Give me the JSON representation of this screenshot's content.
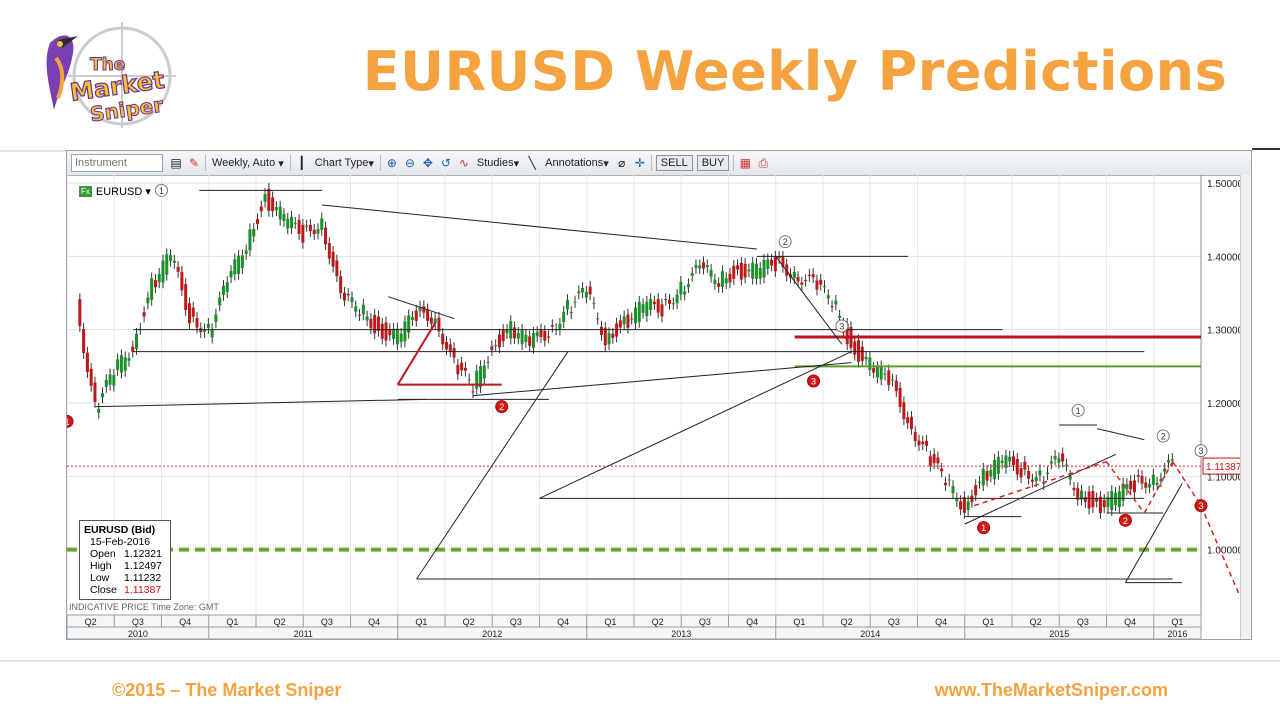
{
  "slide": {
    "title": "EURUSD Weekly Predictions",
    "logo_text": [
      "The",
      "Market",
      "Sniper"
    ],
    "footer_left": "©2015 – The Market Sniper",
    "footer_right": "www.TheMarketSniper.com"
  },
  "toolbar": {
    "instrument_placeholder": "Instrument",
    "interval": "Weekly, Auto",
    "chart_type": "Chart Type",
    "studies": "Studies",
    "annotations": "Annotations",
    "sell": "SELL",
    "buy": "BUY"
  },
  "instrument_label": "EURUSD",
  "ohlc": {
    "title": "EURUSD (Bid)",
    "date": "15-Feb-2016",
    "rows": [
      {
        "label": "Open",
        "value": "1.12321"
      },
      {
        "label": "High",
        "value": "1.12497"
      },
      {
        "label": "Low",
        "value": "1.11232"
      },
      {
        "label": "Close",
        "value": "1.11387"
      }
    ]
  },
  "indicative": "INDICATIVE PRICE   Time Zone: GMT",
  "colors": {
    "title": "#f4a340",
    "up_candle": "#1a8f2a",
    "down_candle": "#c01818",
    "support_green": "#5a9a2a",
    "resistance_red": "#c0141c",
    "price_line": "#e02020"
  },
  "chart_data": {
    "type": "line",
    "instrument": "EURUSD",
    "interval": "Weekly",
    "ylim": [
      0.9,
      1.5
    ],
    "y_ticks": [
      "1.50000",
      "1.40000",
      "1.30000",
      "1.20000",
      "1.10000",
      "1.00000"
    ],
    "last_price": "1.11387",
    "quarters": [
      "Q2",
      "Q3",
      "Q4",
      "Q1",
      "Q2",
      "Q3",
      "Q4",
      "Q1",
      "Q2",
      "Q3",
      "Q4",
      "Q1",
      "Q2",
      "Q3",
      "Q4",
      "Q1",
      "Q2",
      "Q3",
      "Q4",
      "Q1",
      "Q2",
      "Q3",
      "Q4",
      "Q1"
    ],
    "years": [
      "2010",
      "2011",
      "2012",
      "2013",
      "2014",
      "2015",
      "2016"
    ],
    "series": [
      {
        "x": [
          2010.3,
          2010.4,
          2010.5,
          2010.6,
          2010.7,
          2010.8,
          2010.9,
          2011.0,
          2011.1,
          2011.2,
          2011.3,
          2011.4,
          2011.5,
          2011.6,
          2011.7,
          2011.8,
          2011.9,
          2012.0,
          2012.1,
          2012.2,
          2012.3,
          2012.4,
          2012.5,
          2012.6,
          2012.7,
          2012.8,
          2012.9,
          2013.0,
          2013.1,
          2013.2,
          2013.3,
          2013.4,
          2013.5,
          2013.6,
          2013.7,
          2013.8,
          2013.9,
          2014.0,
          2014.1,
          2014.2,
          2014.3,
          2014.4,
          2014.5,
          2014.6,
          2014.7,
          2014.8,
          2014.9,
          2015.0,
          2015.1,
          2015.2,
          2015.3,
          2015.4,
          2015.5,
          2015.6,
          2015.7,
          2015.8,
          2015.9,
          2016.0,
          2016.1
        ],
        "y": [
          1.34,
          1.19,
          1.24,
          1.28,
          1.36,
          1.4,
          1.32,
          1.3,
          1.36,
          1.42,
          1.48,
          1.45,
          1.43,
          1.45,
          1.34,
          1.33,
          1.3,
          1.29,
          1.32,
          1.32,
          1.25,
          1.22,
          1.28,
          1.3,
          1.28,
          1.3,
          1.33,
          1.35,
          1.29,
          1.31,
          1.33,
          1.33,
          1.36,
          1.38,
          1.37,
          1.38,
          1.38,
          1.39,
          1.38,
          1.36,
          1.34,
          1.28,
          1.25,
          1.23,
          1.18,
          1.13,
          1.09,
          1.06,
          1.1,
          1.12,
          1.11,
          1.1,
          1.12,
          1.08,
          1.06,
          1.07,
          1.09,
          1.1,
          1.11387
        ]
      }
    ],
    "annotations": [
      "1",
      "2",
      "3",
      "1",
      "2",
      "3"
    ],
    "markers": [
      "1",
      "2",
      "3",
      "1",
      "2",
      "3"
    ],
    "grid": true,
    "legend": "none"
  }
}
